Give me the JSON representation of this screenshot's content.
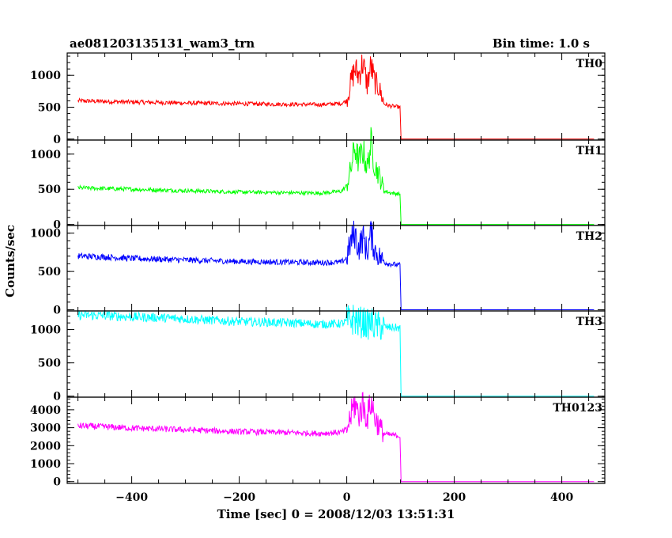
{
  "header": {
    "title": "ae081203135131_wam3_trn",
    "bin_time": "Bin time: 1.0 s"
  },
  "chart_data": {
    "type": "line",
    "title": "ae081203135131_wam3_trn",
    "subtitle": "Bin time: 1.0 s",
    "xlabel": "Time [sec] 0 = 2008/12/03 13:51:31",
    "ylabel": "Counts/sec",
    "xlim": [
      -520,
      480
    ],
    "xticks": [
      -400,
      -200,
      0,
      200,
      400
    ],
    "xtick_labels": [
      "−400",
      "−200",
      "0",
      "200",
      "400"
    ],
    "grid": false,
    "panels": [
      {
        "name": "TH0",
        "color": "#ff0000",
        "ylim": [
          -15,
          1350
        ],
        "yticks": [
          0,
          500,
          1000
        ],
        "ytick_labels": [
          "0",
          "500",
          "1000"
        ],
        "series": [
          {
            "t": [
              -500,
              -450,
              -400,
              -350,
              -300,
              -250,
              -200,
              -150,
              -100,
              -50,
              -10,
              0,
              8,
              15,
              22,
              30,
              38,
              45,
              52,
              60,
              70,
              80,
              90,
              99,
              101,
              150,
              200,
              250,
              300,
              350,
              400,
              460
            ],
            "values": [
              600,
              590,
              580,
              575,
              565,
              560,
              555,
              550,
              545,
              540,
              560,
              600,
              900,
              1100,
              1000,
              1200,
              850,
              1150,
              900,
              800,
              550,
              520,
              510,
              500,
              0,
              0,
              0,
              0,
              0,
              0,
              0,
              0
            ]
          }
        ]
      },
      {
        "name": "TH1",
        "color": "#00ff00",
        "ylim": [
          -15,
          1200
        ],
        "yticks": [
          0,
          500,
          1000
        ],
        "ytick_labels": [
          "0",
          "500",
          "1000"
        ],
        "series": [
          {
            "t": [
              -500,
              -450,
              -400,
              -350,
              -300,
              -250,
              -200,
              -150,
              -100,
              -50,
              -10,
              0,
              8,
              15,
              22,
              30,
              38,
              45,
              52,
              60,
              70,
              80,
              90,
              99,
              101,
              150,
              200,
              250,
              300,
              350,
              400,
              460
            ],
            "values": [
              520,
              510,
              500,
              490,
              480,
              470,
              460,
              455,
              450,
              445,
              470,
              550,
              800,
              1100,
              900,
              1050,
              800,
              1150,
              850,
              700,
              480,
              450,
              440,
              430,
              0,
              0,
              0,
              0,
              0,
              0,
              0,
              0
            ]
          }
        ]
      },
      {
        "name": "TH2",
        "color": "#0000ff",
        "ylim": [
          -15,
          1100
        ],
        "yticks": [
          0,
          500,
          1000
        ],
        "ytick_labels": [
          "0",
          "500",
          "1000"
        ],
        "series": [
          {
            "t": [
              -500,
              -450,
              -400,
              -350,
              -300,
              -250,
              -200,
              -150,
              -100,
              -50,
              -10,
              0,
              8,
              15,
              22,
              30,
              38,
              45,
              52,
              60,
              70,
              80,
              90,
              99,
              101,
              150,
              200,
              250,
              300,
              350,
              400,
              460
            ],
            "values": [
              700,
              690,
              670,
              660,
              650,
              640,
              630,
              625,
              620,
              615,
              620,
              680,
              900,
              1000,
              800,
              950,
              750,
              1000,
              780,
              700,
              620,
              600,
              590,
              580,
              0,
              0,
              0,
              0,
              0,
              0,
              0,
              0
            ]
          }
        ]
      },
      {
        "name": "TH3",
        "color": "#00ffff",
        "ylim": [
          -15,
          1280
        ],
        "yticks": [
          0,
          500,
          1000
        ],
        "ytick_labels": [
          "0",
          "500",
          "1000"
        ],
        "series": [
          {
            "t": [
              -500,
              -450,
              -400,
              -350,
              -300,
              -250,
              -200,
              -150,
              -100,
              -50,
              -10,
              0,
              8,
              15,
              22,
              30,
              38,
              45,
              52,
              60,
              70,
              80,
              90,
              99,
              101,
              150,
              200,
              250,
              300,
              350,
              400,
              460
            ],
            "values": [
              1220,
              1210,
              1190,
              1180,
              1160,
              1140,
              1120,
              1110,
              1100,
              1080,
              1090,
              1120,
              1150,
              1160,
              1100,
              1120,
              1070,
              1110,
              1060,
              1050,
              1040,
              1030,
              1030,
              1020,
              0,
              0,
              0,
              0,
              0,
              0,
              0,
              0
            ]
          }
        ]
      },
      {
        "name": "TH0123",
        "color": "#ff00ff",
        "ylim": [
          -100,
          4700
        ],
        "yticks": [
          0,
          1000,
          2000,
          3000,
          4000
        ],
        "ytick_labels": [
          "0",
          "1000",
          "2000",
          "3000",
          "4000"
        ],
        "series": [
          {
            "t": [
              -500,
              -450,
              -400,
              -350,
              -300,
              -250,
              -200,
              -150,
              -100,
              -50,
              -10,
              0,
              8,
              15,
              22,
              30,
              38,
              45,
              52,
              60,
              70,
              80,
              90,
              99,
              101,
              150,
              200,
              250,
              300,
              350,
              400,
              460
            ],
            "values": [
              3100,
              3050,
              2980,
              2930,
              2880,
              2830,
              2780,
              2750,
              2720,
              2680,
              2750,
              2900,
              3700,
              4400,
              3700,
              4300,
              3500,
              4500,
              3600,
              3100,
              2650,
              2600,
              2570,
              2550,
              0,
              0,
              0,
              0,
              0,
              0,
              0,
              0
            ]
          }
        ]
      }
    ]
  }
}
